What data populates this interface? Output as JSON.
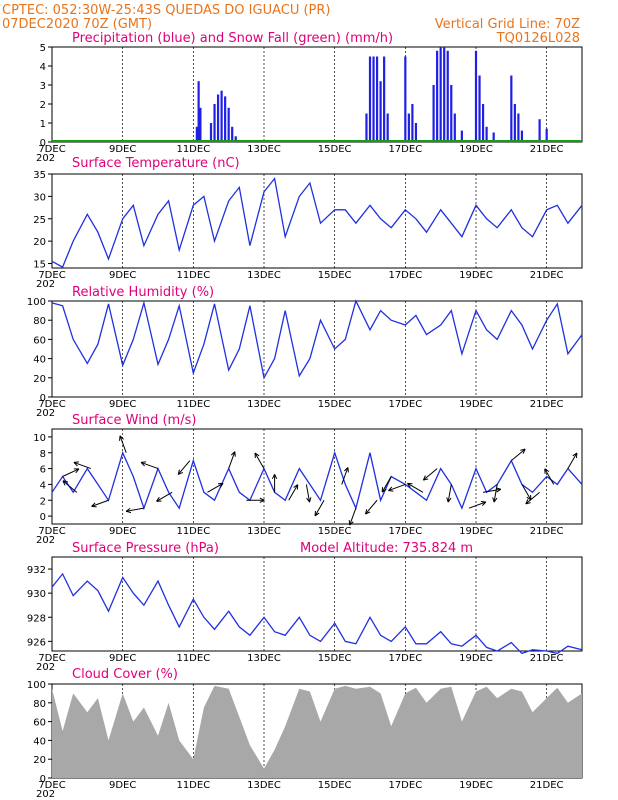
{
  "header": {
    "line1_left": "CPTEC:   052:30W-25:43S  QUEDAS DO IGUACU (PR)",
    "line2_left": "07DEC2020 70Z (GMT)",
    "line2_right": "Vertical Grid Line: 70Z",
    "line3_right": "TQ0126L028"
  },
  "x_axis": {
    "days": 15,
    "tick_labels": [
      "7DEC",
      "9DEC",
      "11DEC",
      "13DEC",
      "15DEC",
      "17DEC",
      "19DEC",
      "21DEC"
    ],
    "tick_days": [
      0,
      2,
      4,
      6,
      8,
      10,
      12,
      14
    ],
    "year_stub": "202"
  },
  "colors": {
    "line": "#2030e0",
    "precip": "#1f1fe6",
    "snow": "#10a010",
    "cloud": "#a8a8a8",
    "header": "#e8741c",
    "title": "#e0007a"
  },
  "chart_data": [
    {
      "type": "bar",
      "title": "Precipitation (blue) and Snow Fall (green) (mm/h)",
      "ylim": [
        0,
        5
      ],
      "yticks": [
        0,
        1,
        2,
        3,
        4,
        5
      ],
      "series": [
        {
          "name": "Precipitation",
          "x_days": [
            4.1,
            4.15,
            4.2,
            4.5,
            4.6,
            4.7,
            4.8,
            4.9,
            5.0,
            5.1,
            5.2,
            8.9,
            9.0,
            9.1,
            9.2,
            9.3,
            9.4,
            9.5,
            10.0,
            10.1,
            10.2,
            10.3,
            10.8,
            10.9,
            11.0,
            11.1,
            11.2,
            11.3,
            11.4,
            11.6,
            12.0,
            12.1,
            12.2,
            12.3,
            12.5,
            13.0,
            13.1,
            13.2,
            13.3,
            13.8,
            14.0
          ],
          "values": [
            0.8,
            3.2,
            1.8,
            1.0,
            2.0,
            2.5,
            2.7,
            2.4,
            1.8,
            0.8,
            0.3,
            1.5,
            4.5,
            4.5,
            4.5,
            3.2,
            4.5,
            1.5,
            4.5,
            1.5,
            2.0,
            1.0,
            3.0,
            4.8,
            5.0,
            5.0,
            4.8,
            3.0,
            1.5,
            0.6,
            4.8,
            3.5,
            2.0,
            0.8,
            0.5,
            3.5,
            2.0,
            1.5,
            0.6,
            1.2,
            0.7
          ]
        },
        {
          "name": "Snow Fall",
          "x_days": [],
          "values": []
        }
      ]
    },
    {
      "type": "line",
      "title": "Surface Temperature (nC)",
      "ylim": [
        14,
        35
      ],
      "yticks": [
        15,
        20,
        25,
        30,
        35
      ],
      "series": [
        {
          "name": "Surface Temperature",
          "x_days": [
            0,
            0.3,
            0.6,
            1.0,
            1.3,
            1.6,
            2.0,
            2.3,
            2.6,
            3.0,
            3.3,
            3.6,
            4.0,
            4.3,
            4.6,
            5.0,
            5.3,
            5.6,
            6.0,
            6.3,
            6.6,
            7.0,
            7.3,
            7.6,
            8.0,
            8.3,
            8.6,
            9.0,
            9.3,
            9.6,
            10.0,
            10.3,
            10.6,
            11.0,
            11.3,
            11.6,
            12.0,
            12.3,
            12.6,
            13.0,
            13.3,
            13.6,
            14.0,
            14.3,
            14.6,
            15.0
          ],
          "values": [
            15.5,
            14.2,
            20,
            26,
            22,
            16,
            25,
            28,
            19,
            26,
            29,
            18,
            28,
            30,
            20,
            29,
            32,
            19,
            31,
            34,
            21,
            30,
            33,
            24,
            27,
            27,
            24,
            28,
            25,
            23,
            27,
            25,
            22,
            27,
            24,
            21,
            28,
            25,
            23,
            27,
            23,
            21,
            27,
            28,
            24,
            28
          ]
        }
      ]
    },
    {
      "type": "line",
      "title": "Relative Humidity (%)",
      "ylim": [
        0,
        100
      ],
      "yticks": [
        0,
        20,
        40,
        60,
        80,
        100
      ],
      "series": [
        {
          "name": "Relative Humidity",
          "x_days": [
            0,
            0.3,
            0.6,
            1.0,
            1.3,
            1.6,
            2.0,
            2.3,
            2.6,
            3.0,
            3.3,
            3.6,
            4.0,
            4.3,
            4.6,
            5.0,
            5.3,
            5.6,
            6.0,
            6.3,
            6.6,
            7.0,
            7.3,
            7.6,
            8.0,
            8.3,
            8.6,
            9.0,
            9.3,
            9.6,
            10.0,
            10.3,
            10.6,
            11.0,
            11.3,
            11.6,
            12.0,
            12.3,
            12.6,
            13.0,
            13.3,
            13.6,
            14.0,
            14.3,
            14.6,
            15.0
          ],
          "values": [
            98,
            95,
            60,
            35,
            55,
            97,
            33,
            60,
            98,
            34,
            60,
            95,
            25,
            55,
            97,
            28,
            50,
            95,
            20,
            40,
            90,
            22,
            40,
            80,
            50,
            60,
            100,
            70,
            90,
            80,
            75,
            85,
            65,
            75,
            90,
            45,
            90,
            70,
            60,
            90,
            75,
            50,
            80,
            97,
            45,
            65
          ]
        }
      ]
    },
    {
      "type": "line",
      "title": "Surface Wind (m/s)",
      "ylim": [
        -1,
        11
      ],
      "yticks": [
        0,
        2,
        4,
        6,
        8,
        10
      ],
      "series": [
        {
          "name": "Surface Wind",
          "x_days": [
            0,
            0.3,
            0.6,
            1.0,
            1.3,
            1.6,
            2.0,
            2.3,
            2.6,
            3.0,
            3.3,
            3.6,
            4.0,
            4.3,
            4.6,
            5.0,
            5.3,
            5.6,
            6.0,
            6.3,
            6.6,
            7.0,
            7.3,
            7.6,
            8.0,
            8.3,
            8.6,
            9.0,
            9.3,
            9.6,
            10.0,
            10.3,
            10.6,
            11.0,
            11.3,
            11.6,
            12.0,
            12.3,
            12.6,
            13.0,
            13.3,
            13.6,
            14.0,
            14.3,
            14.6,
            15.0
          ],
          "values": [
            3,
            5,
            3,
            6,
            4,
            2,
            8,
            5,
            1,
            6,
            3,
            1,
            7,
            3,
            2,
            6,
            3,
            2,
            6,
            3,
            2,
            6,
            4,
            2,
            8,
            4,
            1,
            8,
            2,
            5,
            4,
            3,
            2,
            6,
            4,
            1,
            6,
            3,
            4,
            7,
            4,
            3,
            5,
            4,
            6,
            4
          ]
        }
      ],
      "vectors": [
        [
          0.3,
          25
        ],
        [
          0.7,
          140
        ],
        [
          1.1,
          160
        ],
        [
          1.6,
          200
        ],
        [
          2.1,
          110
        ],
        [
          2.6,
          190
        ],
        [
          3.0,
          160
        ],
        [
          3.4,
          210
        ],
        [
          3.9,
          230
        ],
        [
          4.4,
          30
        ],
        [
          5.0,
          70
        ],
        [
          5.5,
          0
        ],
        [
          6.0,
          120
        ],
        [
          6.3,
          90
        ],
        [
          6.7,
          60
        ],
        [
          7.2,
          280
        ],
        [
          7.7,
          240
        ],
        [
          8.2,
          70
        ],
        [
          8.6,
          250
        ],
        [
          9.2,
          230
        ],
        [
          9.6,
          240
        ],
        [
          10.0,
          200
        ],
        [
          10.5,
          150
        ],
        [
          10.9,
          220
        ],
        [
          11.3,
          260
        ],
        [
          11.8,
          20
        ],
        [
          12.2,
          10
        ],
        [
          12.6,
          260
        ],
        [
          13.0,
          40
        ],
        [
          13.3,
          300
        ],
        [
          13.8,
          220
        ],
        [
          14.2,
          120
        ],
        [
          14.6,
          60
        ]
      ]
    },
    {
      "type": "line",
      "title": "Surface Pressure (hPa)",
      "annotation": "Model Altitude: 735.824 m",
      "ylim": [
        925.2,
        933.0
      ],
      "yticks": [
        926,
        928,
        930,
        932
      ],
      "series": [
        {
          "name": "Surface Pressure",
          "x_days": [
            0,
            0.3,
            0.6,
            1.0,
            1.3,
            1.6,
            2.0,
            2.3,
            2.6,
            3.0,
            3.3,
            3.6,
            4.0,
            4.3,
            4.6,
            5.0,
            5.3,
            5.6,
            6.0,
            6.3,
            6.6,
            7.0,
            7.3,
            7.6,
            8.0,
            8.3,
            8.6,
            9.0,
            9.3,
            9.6,
            10.0,
            10.3,
            10.6,
            11.0,
            11.3,
            11.6,
            12.0,
            12.3,
            12.6,
            13.0,
            13.3,
            13.6,
            14.0,
            14.3,
            14.6,
            15.0
          ],
          "values": [
            930.5,
            931.6,
            929.8,
            931.0,
            930.2,
            928.5,
            931.3,
            930.0,
            929.0,
            931.0,
            929.0,
            927.2,
            929.5,
            928.0,
            927.0,
            928.5,
            927.2,
            926.5,
            928.0,
            926.8,
            926.5,
            928.0,
            926.5,
            926.0,
            927.5,
            926.0,
            925.8,
            928.0,
            926.5,
            926.0,
            927.2,
            925.8,
            925.8,
            926.8,
            925.8,
            925.6,
            926.5,
            925.5,
            925.2,
            925.9,
            925.0,
            925.3,
            925.2,
            925.0,
            925.6,
            925.3
          ]
        }
      ]
    },
    {
      "type": "area",
      "title": "Cloud Cover (%)",
      "ylim": [
        0,
        100
      ],
      "yticks": [
        0,
        20,
        40,
        60,
        80,
        100
      ],
      "series": [
        {
          "name": "Cloud Cover",
          "x_days": [
            0,
            0.3,
            0.6,
            1.0,
            1.3,
            1.6,
            2.0,
            2.3,
            2.6,
            3.0,
            3.3,
            3.6,
            4.0,
            4.3,
            4.6,
            5.0,
            5.3,
            5.6,
            6.0,
            6.3,
            6.6,
            7.0,
            7.3,
            7.6,
            8.0,
            8.3,
            8.6,
            9.0,
            9.3,
            9.6,
            10.0,
            10.3,
            10.6,
            11.0,
            11.3,
            11.6,
            12.0,
            12.3,
            12.6,
            13.0,
            13.3,
            13.6,
            14.0,
            14.3,
            14.6,
            15.0
          ],
          "values": [
            95,
            50,
            90,
            70,
            85,
            40,
            90,
            60,
            75,
            45,
            80,
            40,
            20,
            75,
            98,
            95,
            65,
            35,
            10,
            30,
            55,
            95,
            92,
            60,
            95,
            98,
            95,
            97,
            90,
            55,
            90,
            96,
            80,
            95,
            97,
            60,
            92,
            97,
            85,
            95,
            92,
            70,
            85,
            96,
            80,
            90
          ]
        }
      ]
    }
  ]
}
